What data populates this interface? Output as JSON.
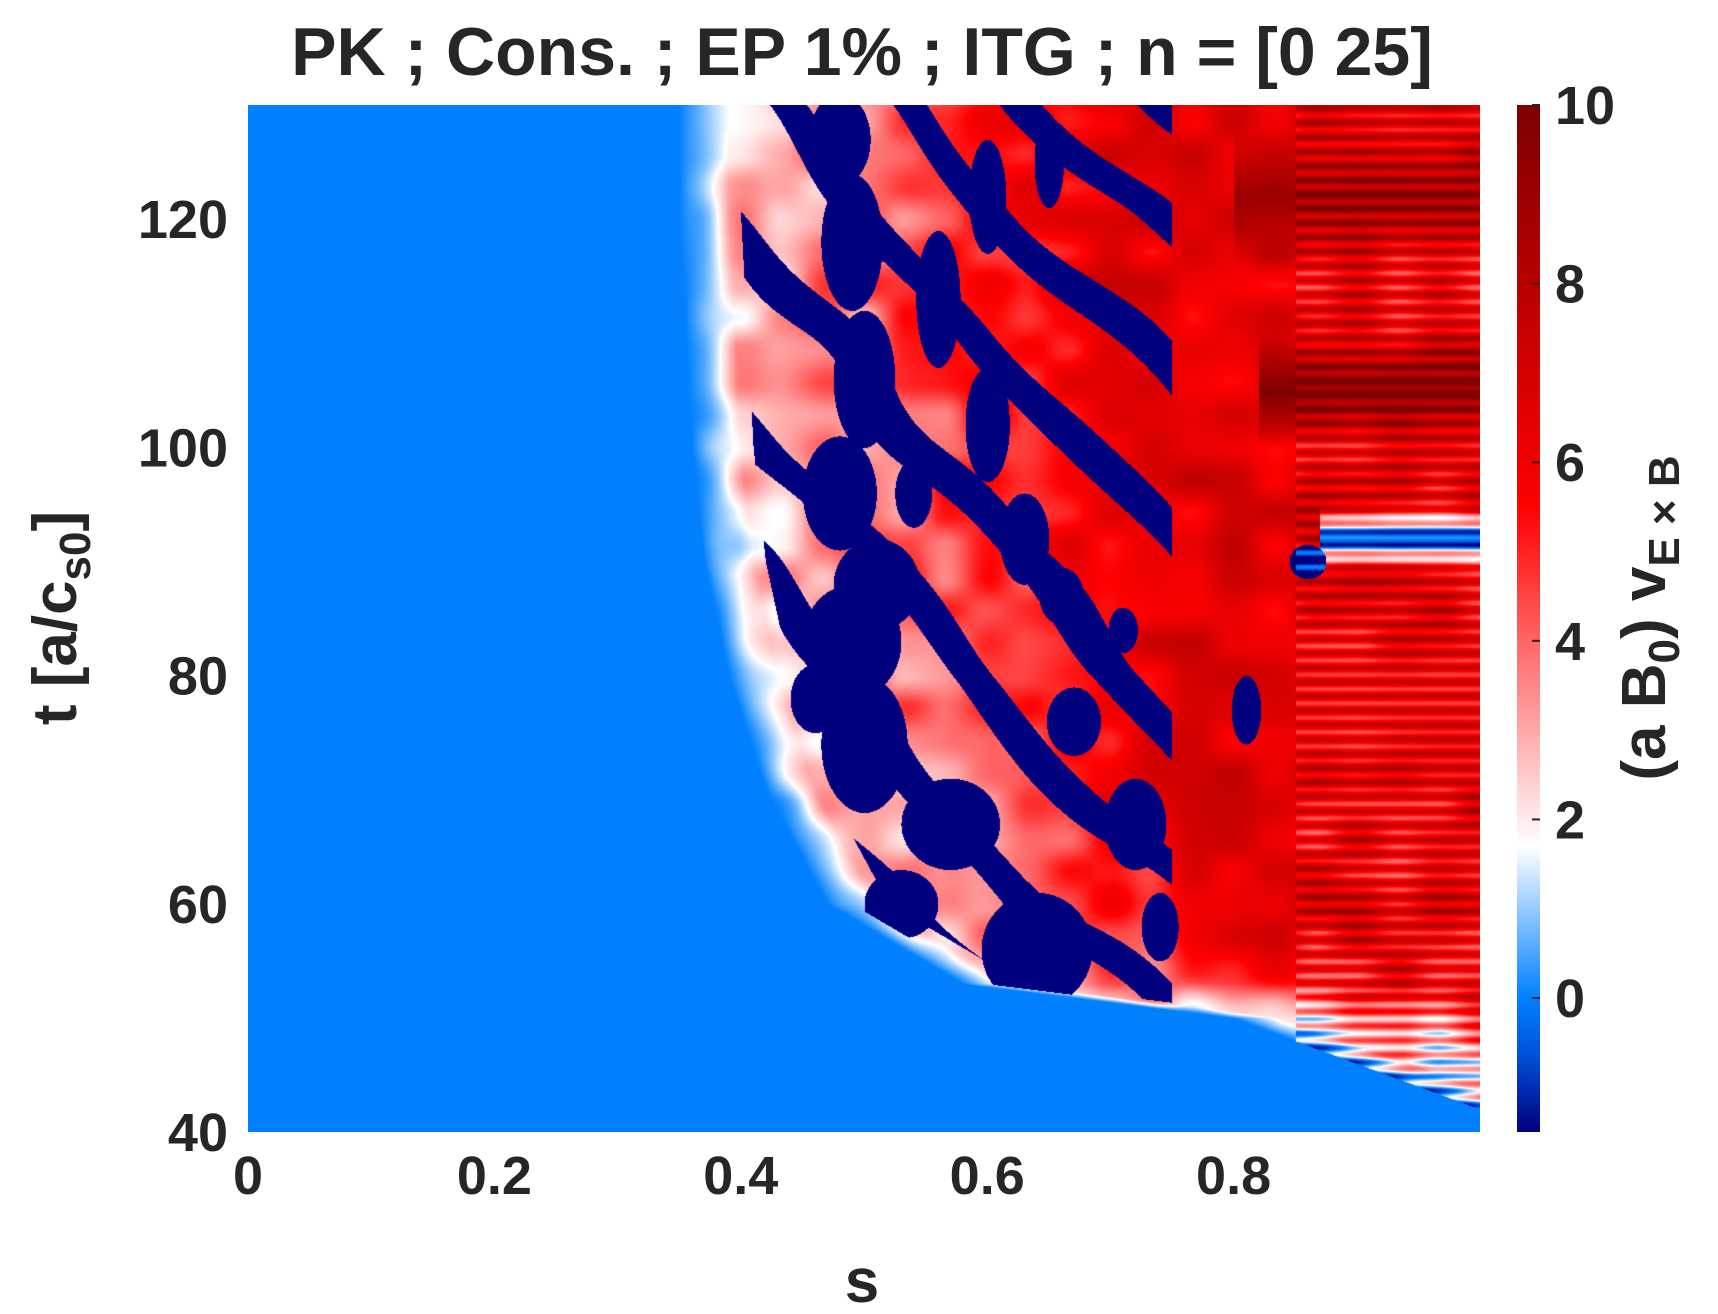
{
  "chart_data": {
    "type": "heatmap",
    "title": "PK ; Cons. ; EP 1% ; ITG ; n = [0 25]",
    "xlabel": "s",
    "ylabel_main": "t [a/c",
    "ylabel_sub": "s0",
    "ylabel_close": "]",
    "colorbar_label_prefix": "(a B",
    "colorbar_label_sub0": "0",
    "colorbar_label_mid": ") v",
    "colorbar_label_sub1": "E × B",
    "xlim": [
      0,
      1
    ],
    "ylim": [
      40,
      130
    ],
    "clim": [
      -1.5,
      10
    ],
    "xticks": [
      0,
      0.2,
      0.4,
      0.6,
      0.8
    ],
    "xtick_labels": [
      "0",
      "0.2",
      "0.4",
      "0.6",
      "0.8"
    ],
    "yticks": [
      40,
      60,
      80,
      100,
      120
    ],
    "ytick_labels": [
      "40",
      "60",
      "80",
      "100",
      "120"
    ],
    "cticks": [
      0,
      2,
      4,
      6,
      8,
      10
    ],
    "ctick_labels": [
      "0",
      "2",
      "4",
      "6",
      "8",
      "10"
    ],
    "colormap": [
      "#00007f",
      "#0055dd",
      "#0080ff",
      "#ffffff",
      "#ff0000",
      "#7f0000"
    ],
    "colormap_stops": [
      -1.5,
      -0.6,
      0,
      1.7,
      5.5,
      10
    ],
    "background_value": 0,
    "front_s_vs_t": [
      {
        "t": 40,
        "s": 1.05
      },
      {
        "t": 50,
        "s": 0.8
      },
      {
        "t": 53,
        "s": 0.58
      },
      {
        "t": 60,
        "s": 0.47
      },
      {
        "t": 70,
        "s": 0.42
      },
      {
        "t": 80,
        "s": 0.39
      },
      {
        "t": 90,
        "s": 0.37
      },
      {
        "t": 100,
        "s": 0.36
      },
      {
        "t": 110,
        "s": 0.355
      },
      {
        "t": 120,
        "s": 0.35
      },
      {
        "t": 130,
        "s": 0.35
      }
    ],
    "negative_regions": [
      {
        "s": 0.64,
        "t": 56,
        "rs": 0.045,
        "rt": 5,
        "v": -1.5
      },
      {
        "s": 0.53,
        "t": 60,
        "rs": 0.03,
        "rt": 3,
        "v": -1.5
      },
      {
        "s": 0.57,
        "t": 67,
        "rs": 0.04,
        "rt": 4,
        "v": -1.5
      },
      {
        "s": 0.5,
        "t": 74,
        "rs": 0.035,
        "rt": 6,
        "v": -1.5
      },
      {
        "s": 0.49,
        "t": 83,
        "rs": 0.04,
        "rt": 5,
        "v": -1.5
      },
      {
        "s": 0.51,
        "t": 88,
        "rs": 0.035,
        "rt": 4,
        "v": -1.5
      },
      {
        "s": 0.46,
        "t": 78,
        "rs": 0.02,
        "rt": 3,
        "v": -1.5
      },
      {
        "s": 0.48,
        "t": 96,
        "rs": 0.03,
        "rt": 5,
        "v": -1.5
      },
      {
        "s": 0.5,
        "t": 106,
        "rs": 0.025,
        "rt": 6,
        "v": -1.5
      },
      {
        "s": 0.49,
        "t": 118,
        "rs": 0.025,
        "rt": 6,
        "v": -1.5
      },
      {
        "s": 0.48,
        "t": 127,
        "rs": 0.025,
        "rt": 4,
        "v": -1.5
      },
      {
        "s": 0.56,
        "t": 113,
        "rs": 0.018,
        "rt": 6,
        "v": -1.5
      },
      {
        "s": 0.6,
        "t": 102,
        "rs": 0.018,
        "rt": 5,
        "v": -1.5
      },
      {
        "s": 0.63,
        "t": 92,
        "rs": 0.02,
        "rt": 4,
        "v": -1.5
      },
      {
        "s": 0.66,
        "t": 87,
        "rs": 0.018,
        "rt": 2.5,
        "v": -1.5
      },
      {
        "s": 0.67,
        "t": 76,
        "rs": 0.022,
        "rt": 3,
        "v": -1.5
      },
      {
        "s": 0.72,
        "t": 67,
        "rs": 0.025,
        "rt": 4,
        "v": -1.5
      },
      {
        "s": 0.74,
        "t": 58,
        "rs": 0.015,
        "rt": 3,
        "v": -1.5
      },
      {
        "s": 0.71,
        "t": 84,
        "rs": 0.012,
        "rt": 2,
        "v": -1.5
      },
      {
        "s": 0.6,
        "t": 122,
        "rs": 0.015,
        "rt": 5,
        "v": -1.5
      },
      {
        "s": 0.65,
        "t": 125,
        "rs": 0.012,
        "rt": 4,
        "v": -1.5
      },
      {
        "s": 0.54,
        "t": 96,
        "rs": 0.015,
        "rt": 3,
        "v": -1.5
      },
      {
        "s": 0.81,
        "t": 77,
        "rs": 0.012,
        "rt": 3,
        "v": -1.5
      },
      {
        "s": 0.86,
        "t": 90,
        "rs": 0.015,
        "rt": 1.5,
        "v": -1.5
      }
    ],
    "red_bands": [
      {
        "t": 105,
        "rt": 5,
        "v": 10,
        "s_from": 0.82
      },
      {
        "t": 122,
        "rt": 6,
        "v": 9,
        "s_from": 0.8
      },
      {
        "t": 78,
        "rt": 8,
        "v": 6,
        "s_from": 0.85
      },
      {
        "t": 92,
        "rt": 3,
        "v": -1.5,
        "s_from": 0.87
      }
    ]
  }
}
